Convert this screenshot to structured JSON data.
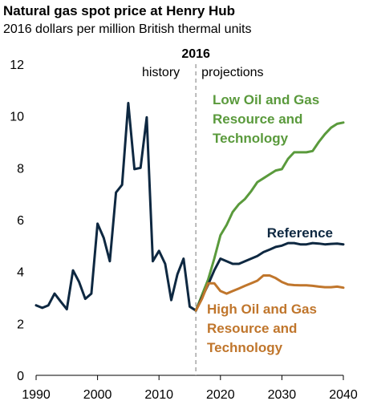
{
  "chart_data": {
    "type": "line",
    "title": "Natural gas spot price at Henry Hub",
    "subtitle": "2016 dollars per million British thermal units",
    "xlim": [
      1990,
      2040
    ],
    "ylim": [
      0,
      12
    ],
    "x_ticks": [
      "1990",
      "2000",
      "2010",
      "2020",
      "2030",
      "2040"
    ],
    "y_ticks": [
      "0",
      "2",
      "4",
      "6",
      "8",
      "10",
      "12"
    ],
    "divider": {
      "x": 2016,
      "label": "2016",
      "left_label": "history",
      "right_label": "projections"
    },
    "series": [
      {
        "key": "history",
        "color": "#0e2841",
        "x": [
          1990,
          1991,
          1992,
          1993,
          1994,
          1995,
          1996,
          1997,
          1998,
          1999,
          2000,
          2001,
          2002,
          2003,
          2004,
          2005,
          2006,
          2007,
          2008,
          2009,
          2010,
          2011,
          2012,
          2013,
          2014,
          2015,
          2016
        ],
        "y": [
          2.7,
          2.6,
          2.7,
          3.15,
          2.85,
          2.55,
          4.05,
          3.6,
          2.95,
          3.15,
          5.85,
          5.3,
          4.4,
          7.05,
          7.35,
          10.5,
          7.95,
          8.0,
          9.95,
          4.4,
          4.8,
          4.3,
          2.9,
          3.9,
          4.5,
          2.65,
          2.5
        ]
      },
      {
        "key": "low",
        "color": "#5a9a3c",
        "name_lines": [
          "Low Oil and Gas",
          "Resource and",
          "Technology"
        ],
        "x": [
          2016,
          2017,
          2018,
          2019,
          2020,
          2021,
          2022,
          2023,
          2024,
          2025,
          2026,
          2027,
          2028,
          2029,
          2030,
          2031,
          2032,
          2033,
          2034,
          2035,
          2036,
          2037,
          2038,
          2039,
          2040
        ],
        "y": [
          2.5,
          3.1,
          3.7,
          4.5,
          5.4,
          5.8,
          6.3,
          6.6,
          6.8,
          7.1,
          7.45,
          7.6,
          7.75,
          7.9,
          7.95,
          8.35,
          8.6,
          8.6,
          8.6,
          8.65,
          9.0,
          9.3,
          9.55,
          9.7,
          9.75
        ]
      },
      {
        "key": "reference",
        "color": "#0e2841",
        "name_lines": [
          "Reference"
        ],
        "x": [
          2016,
          2017,
          2018,
          2019,
          2020,
          2021,
          2022,
          2023,
          2024,
          2025,
          2026,
          2027,
          2028,
          2029,
          2030,
          2031,
          2032,
          2033,
          2034,
          2035,
          2036,
          2037,
          2038,
          2039,
          2040
        ],
        "y": [
          2.5,
          3.0,
          3.5,
          4.05,
          4.5,
          4.4,
          4.3,
          4.3,
          4.4,
          4.5,
          4.6,
          4.75,
          4.85,
          4.95,
          5.0,
          5.1,
          5.1,
          5.05,
          5.05,
          5.1,
          5.08,
          5.05,
          5.07,
          5.08,
          5.05
        ]
      },
      {
        "key": "high",
        "color": "#c0762c",
        "name_lines": [
          "High Oil and Gas",
          "Resource and",
          "Technology"
        ],
        "x": [
          2016,
          2017,
          2018,
          2019,
          2020,
          2021,
          2022,
          2023,
          2024,
          2025,
          2026,
          2027,
          2028,
          2029,
          2030,
          2031,
          2032,
          2033,
          2034,
          2035,
          2036,
          2037,
          2038,
          2039,
          2040
        ],
        "y": [
          2.5,
          2.95,
          3.55,
          3.55,
          3.25,
          3.15,
          3.25,
          3.35,
          3.45,
          3.55,
          3.65,
          3.85,
          3.85,
          3.75,
          3.6,
          3.5,
          3.48,
          3.47,
          3.47,
          3.45,
          3.42,
          3.4,
          3.4,
          3.42,
          3.38
        ]
      }
    ]
  }
}
